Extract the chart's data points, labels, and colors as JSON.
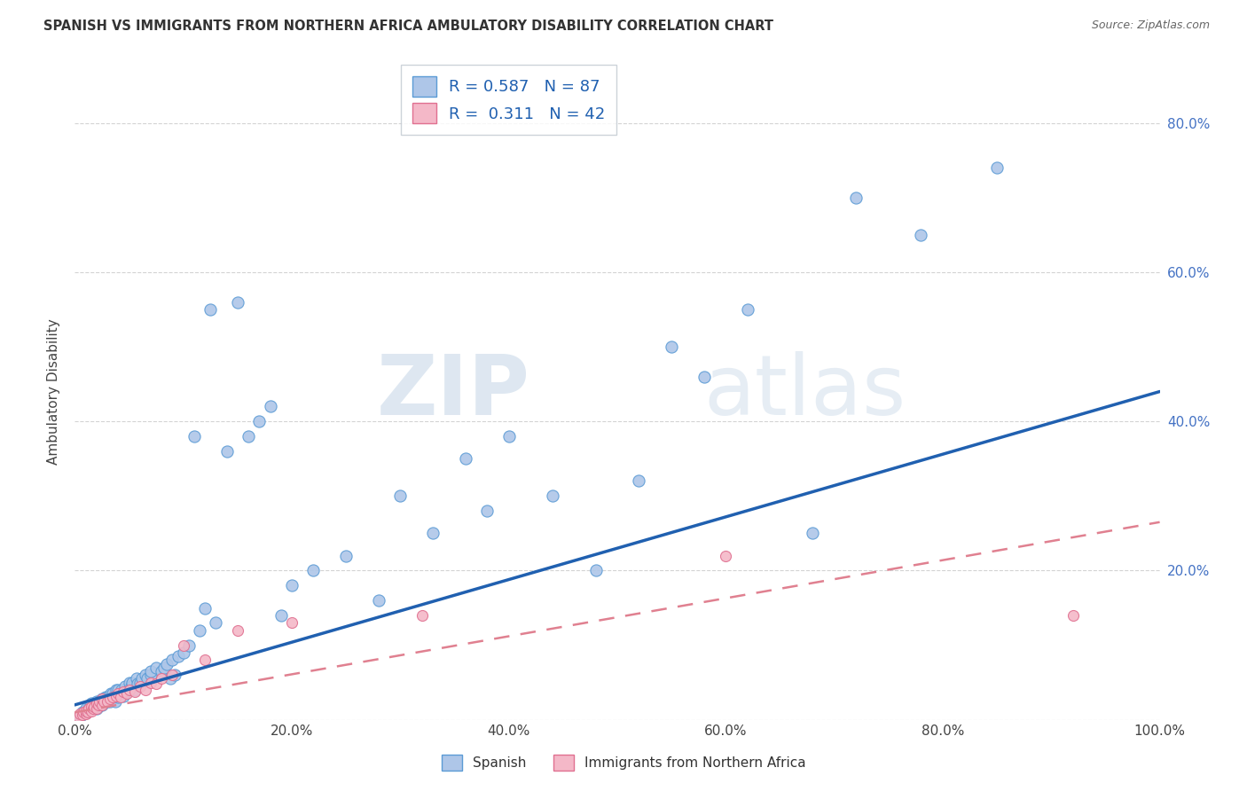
{
  "title": "SPANISH VS IMMIGRANTS FROM NORTHERN AFRICA AMBULATORY DISABILITY CORRELATION CHART",
  "source": "Source: ZipAtlas.com",
  "ylabel": "Ambulatory Disability",
  "watermark_zip": "ZIP",
  "watermark_atlas": "atlas",
  "legend_bottom": [
    "Spanish",
    "Immigrants from Northern Africa"
  ],
  "r_spanish": 0.587,
  "n_spanish": 87,
  "r_immigrants": 0.311,
  "n_immigrants": 42,
  "spanish_color": "#aec6e8",
  "immigrant_color": "#f4b8c8",
  "spanish_edge_color": "#5b9bd5",
  "immigrant_edge_color": "#e07090",
  "spanish_line_color": "#2060b0",
  "immigrant_line_color": "#e08090",
  "background_color": "#ffffff",
  "grid_color": "#c8c8c8",
  "xlim": [
    0.0,
    1.0
  ],
  "ylim": [
    0.0,
    0.88
  ],
  "x_ticks": [
    0.0,
    0.2,
    0.4,
    0.6,
    0.8,
    1.0
  ],
  "x_tick_labels": [
    "0.0%",
    "20.0%",
    "40.0%",
    "60.0%",
    "80.0%",
    "100.0%"
  ],
  "y_ticks": [
    0.0,
    0.2,
    0.4,
    0.6,
    0.8
  ],
  "y_tick_labels_right": [
    "",
    "20.0%",
    "40.0%",
    "60.0%",
    "80.0%"
  ],
  "spanish_regression_x0": 0.0,
  "spanish_regression_y0": 0.02,
  "spanish_regression_x1": 1.0,
  "spanish_regression_y1": 0.44,
  "immigrant_regression_x0": 0.0,
  "immigrant_regression_y0": 0.01,
  "immigrant_regression_x1": 1.0,
  "immigrant_regression_y1": 0.265,
  "spanish_x": [
    0.005,
    0.007,
    0.008,
    0.01,
    0.01,
    0.012,
    0.013,
    0.015,
    0.015,
    0.016,
    0.018,
    0.02,
    0.02,
    0.022,
    0.023,
    0.025,
    0.025,
    0.027,
    0.028,
    0.03,
    0.03,
    0.032,
    0.033,
    0.035,
    0.035,
    0.037,
    0.038,
    0.04,
    0.04,
    0.042,
    0.043,
    0.045,
    0.046,
    0.048,
    0.05,
    0.05,
    0.052,
    0.053,
    0.055,
    0.057,
    0.058,
    0.06,
    0.062,
    0.065,
    0.067,
    0.07,
    0.07,
    0.075,
    0.08,
    0.082,
    0.085,
    0.088,
    0.09,
    0.092,
    0.095,
    0.1,
    0.105,
    0.11,
    0.115,
    0.12,
    0.125,
    0.13,
    0.14,
    0.15,
    0.16,
    0.17,
    0.18,
    0.19,
    0.2,
    0.22,
    0.25,
    0.28,
    0.3,
    0.33,
    0.36,
    0.38,
    0.4,
    0.44,
    0.48,
    0.52,
    0.55,
    0.58,
    0.62,
    0.68,
    0.72,
    0.78,
    0.85
  ],
  "spanish_y": [
    0.005,
    0.01,
    0.008,
    0.01,
    0.015,
    0.012,
    0.015,
    0.018,
    0.022,
    0.015,
    0.02,
    0.015,
    0.025,
    0.02,
    0.025,
    0.02,
    0.028,
    0.025,
    0.03,
    0.025,
    0.03,
    0.025,
    0.035,
    0.03,
    0.035,
    0.025,
    0.04,
    0.03,
    0.04,
    0.035,
    0.04,
    0.032,
    0.045,
    0.038,
    0.04,
    0.05,
    0.045,
    0.05,
    0.04,
    0.055,
    0.048,
    0.05,
    0.055,
    0.06,
    0.055,
    0.06,
    0.065,
    0.07,
    0.065,
    0.07,
    0.075,
    0.055,
    0.08,
    0.06,
    0.085,
    0.09,
    0.1,
    0.38,
    0.12,
    0.15,
    0.55,
    0.13,
    0.36,
    0.56,
    0.38,
    0.4,
    0.42,
    0.14,
    0.18,
    0.2,
    0.22,
    0.16,
    0.3,
    0.25,
    0.35,
    0.28,
    0.38,
    0.3,
    0.2,
    0.32,
    0.5,
    0.46,
    0.55,
    0.25,
    0.7,
    0.65,
    0.74
  ],
  "immigrant_x": [
    0.003,
    0.005,
    0.007,
    0.008,
    0.01,
    0.01,
    0.012,
    0.013,
    0.015,
    0.015,
    0.017,
    0.018,
    0.02,
    0.02,
    0.022,
    0.023,
    0.025,
    0.025,
    0.027,
    0.03,
    0.032,
    0.035,
    0.038,
    0.04,
    0.042,
    0.045,
    0.048,
    0.05,
    0.055,
    0.06,
    0.065,
    0.07,
    0.075,
    0.08,
    0.09,
    0.1,
    0.12,
    0.15,
    0.2,
    0.32,
    0.6,
    0.92
  ],
  "immigrant_y": [
    0.005,
    0.008,
    0.007,
    0.01,
    0.008,
    0.012,
    0.01,
    0.015,
    0.012,
    0.018,
    0.015,
    0.018,
    0.015,
    0.022,
    0.02,
    0.025,
    0.02,
    0.028,
    0.025,
    0.025,
    0.028,
    0.03,
    0.032,
    0.035,
    0.03,
    0.038,
    0.035,
    0.04,
    0.038,
    0.045,
    0.04,
    0.05,
    0.048,
    0.055,
    0.06,
    0.1,
    0.08,
    0.12,
    0.13,
    0.14,
    0.22,
    0.14
  ]
}
